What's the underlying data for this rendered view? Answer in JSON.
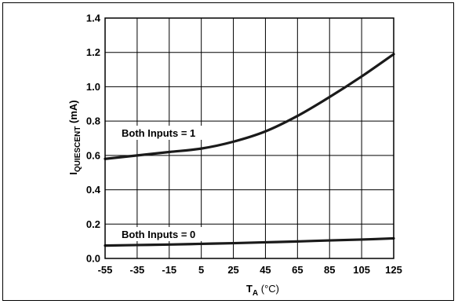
{
  "chart_data": {
    "type": "line",
    "xlabel": {
      "base": "T",
      "sub": "A",
      "suffix": " (°C)"
    },
    "ylabel": {
      "base": "I",
      "sub": "QUIESCENT",
      "suffix": " (mA)"
    },
    "xlim": [
      -55,
      125
    ],
    "ylim": [
      0,
      1.4
    ],
    "xticks": [
      "-55",
      "-35",
      "-15",
      "5",
      "25",
      "45",
      "65",
      "85",
      "105",
      "125"
    ],
    "yticks": [
      "0.0",
      "0.2",
      "0.4",
      "0.6",
      "0.8",
      "1.0",
      "1.2",
      "1.4"
    ],
    "grid": true,
    "series": [
      {
        "name": "Both Inputs = 1",
        "x": [
          -55,
          -35,
          -15,
          5,
          25,
          45,
          65,
          85,
          105,
          125
        ],
        "y": [
          0.58,
          0.6,
          0.62,
          0.64,
          0.68,
          0.74,
          0.83,
          0.94,
          1.06,
          1.19
        ]
      },
      {
        "name": "Both Inputs = 0",
        "x": [
          -55,
          -35,
          -15,
          5,
          25,
          45,
          65,
          85,
          105,
          125
        ],
        "y": [
          0.075,
          0.078,
          0.081,
          0.085,
          0.089,
          0.094,
          0.099,
          0.105,
          0.11,
          0.117
        ]
      }
    ]
  }
}
